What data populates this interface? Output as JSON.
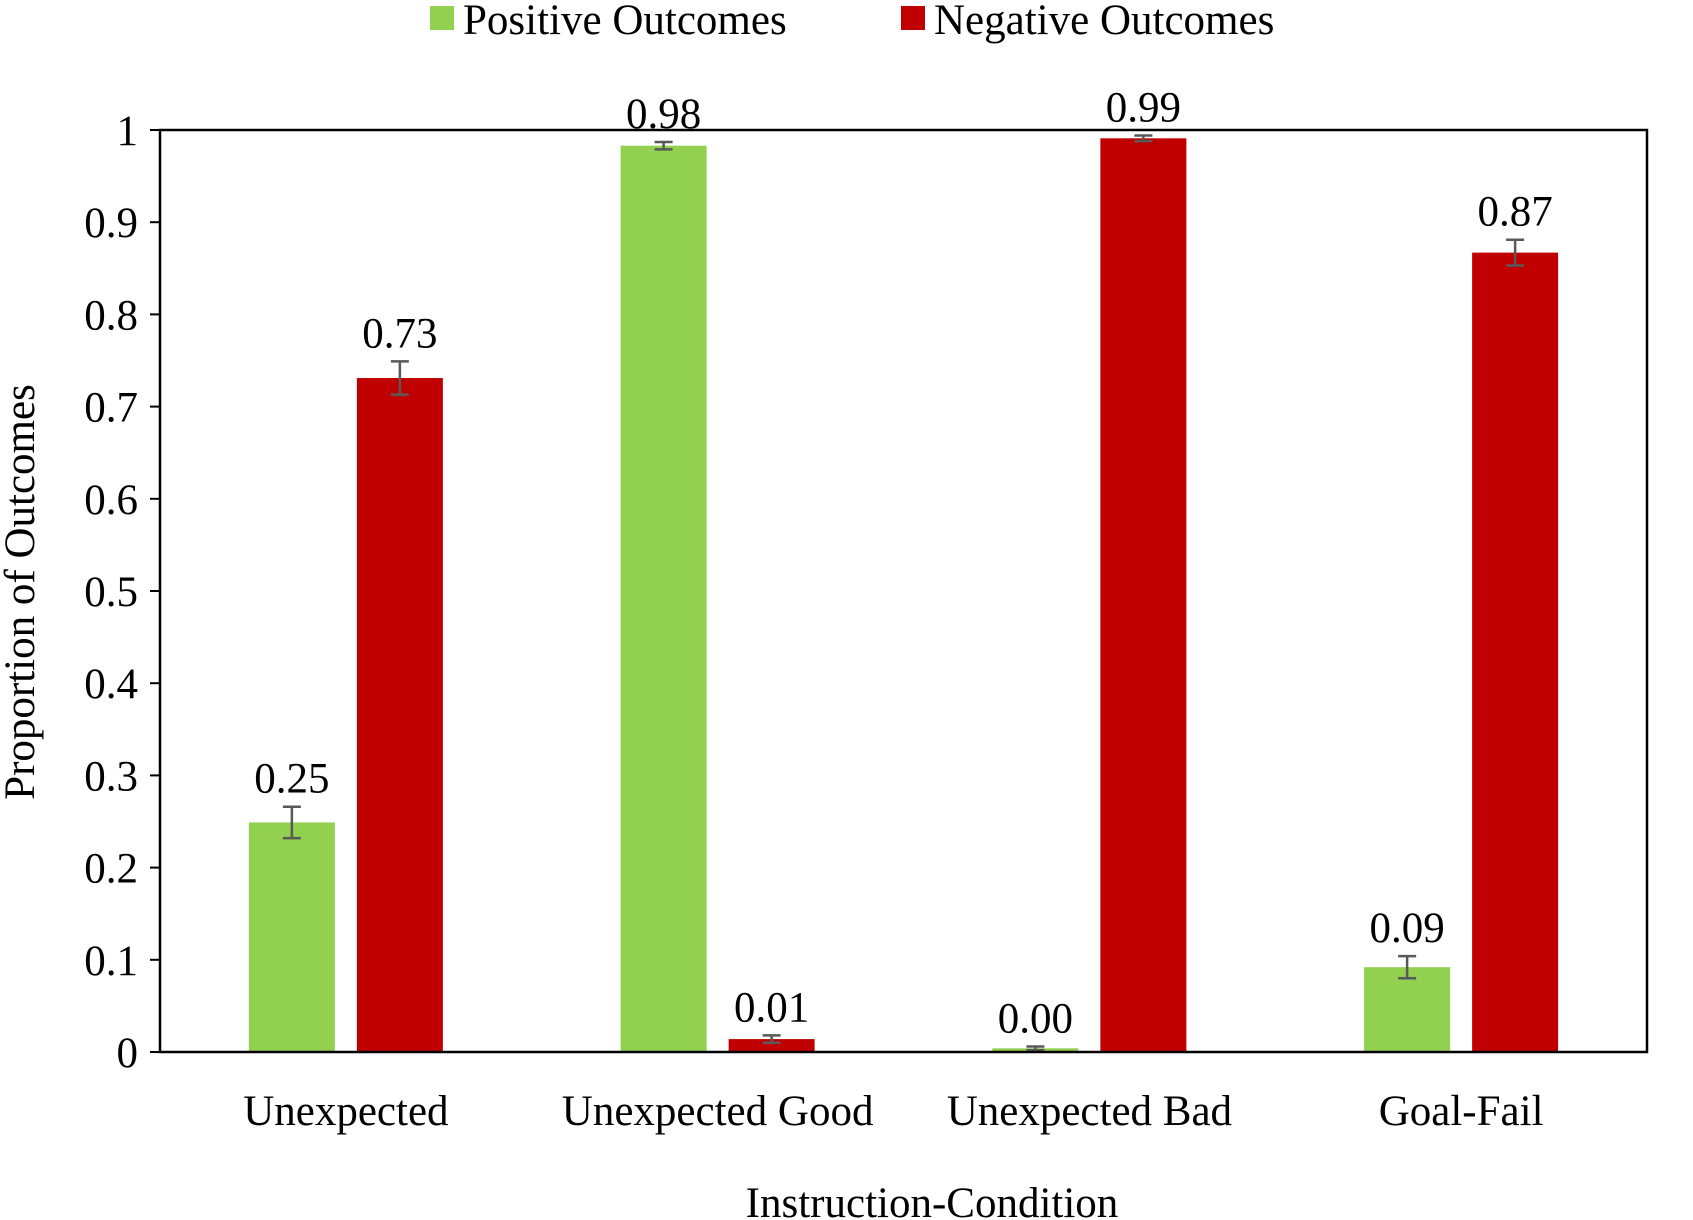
{
  "chart_data": {
    "type": "bar",
    "title": "",
    "xlabel": "Instruction-Condition",
    "ylabel": "Proportion of Outcomes",
    "ylim": [
      0,
      1
    ],
    "yticks": [
      "0",
      "0.1",
      "0.2",
      "0.3",
      "0.4",
      "0.5",
      "0.6",
      "0.7",
      "0.8",
      "0.9",
      "1"
    ],
    "legend_position": "top-center",
    "categories": [
      "Unexpected",
      "Unexpected Good",
      "Unexpected Bad",
      "Goal-Fail"
    ],
    "series": [
      {
        "name": "Positive Outcomes",
        "color": "#92d050",
        "values": [
          0.249,
          0.983,
          0.004,
          0.092
        ],
        "errors": [
          0.017,
          0.004,
          0.002,
          0.012
        ],
        "labels": [
          "0.25",
          "0.98",
          "0.00",
          "0.09"
        ]
      },
      {
        "name": "Negative Outcomes",
        "color": "#c00000",
        "values": [
          0.731,
          0.014,
          0.991,
          0.867
        ],
        "errors": [
          0.018,
          0.004,
          0.003,
          0.014
        ],
        "labels": [
          "0.73",
          "0.01",
          "0.99",
          "0.87"
        ]
      }
    ]
  }
}
